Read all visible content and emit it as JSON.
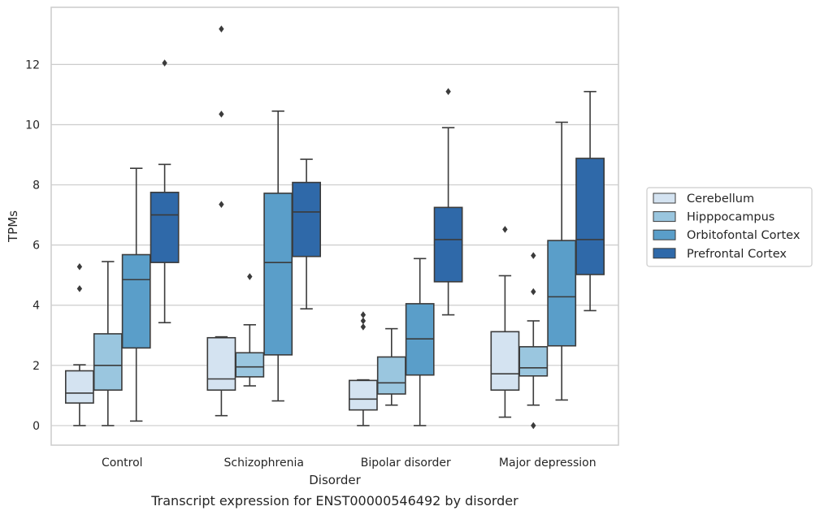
{
  "chart_data": {
    "type": "box",
    "caption": "Transcript expression for ENST00000546492 by disorder",
    "xlabel": "Disorder",
    "ylabel": "TPMs",
    "ylim": [
      -0.65,
      13.9
    ],
    "yticks": [
      0,
      2,
      4,
      6,
      8,
      10,
      12
    ],
    "grid": true,
    "legend_position": "right",
    "categories": [
      "Control",
      "Schizophrenia",
      "Bipolar disorder",
      "Major depression"
    ],
    "series": [
      {
        "name": "Cerebellum",
        "color": "#d4e3f1",
        "boxes": [
          {
            "whislo": 0.0,
            "q1": 0.75,
            "med": 1.08,
            "q3": 1.82,
            "whishi": 2.02,
            "fliers": [
              4.55,
              5.28
            ]
          },
          {
            "whislo": 0.33,
            "q1": 1.18,
            "med": 1.55,
            "q3": 2.92,
            "whishi": 2.95,
            "fliers": [
              7.35,
              10.35,
              13.18
            ]
          },
          {
            "whislo": 0.0,
            "q1": 0.52,
            "med": 0.88,
            "q3": 1.5,
            "whishi": 1.52,
            "fliers": [
              3.28,
              3.48,
              3.68
            ]
          },
          {
            "whislo": 0.28,
            "q1": 1.18,
            "med": 1.72,
            "q3": 3.12,
            "whishi": 4.98,
            "fliers": [
              6.52
            ]
          }
        ]
      },
      {
        "name": "Hipppocampus",
        "color": "#9ac6df",
        "boxes": [
          {
            "whislo": 0.0,
            "q1": 1.18,
            "med": 2.0,
            "q3": 3.05,
            "whishi": 5.45,
            "fliers": []
          },
          {
            "whislo": 1.32,
            "q1": 1.62,
            "med": 1.95,
            "q3": 2.42,
            "whishi": 3.35,
            "fliers": [
              4.95
            ]
          },
          {
            "whislo": 0.68,
            "q1": 1.05,
            "med": 1.42,
            "q3": 2.28,
            "whishi": 3.22,
            "fliers": []
          },
          {
            "whislo": 0.68,
            "q1": 1.65,
            "med": 1.92,
            "q3": 2.62,
            "whishi": 3.48,
            "fliers": [
              0.0,
              4.45,
              5.65
            ]
          }
        ]
      },
      {
        "name": "Orbitofontal Cortex",
        "color": "#5a9ec9",
        "boxes": [
          {
            "whislo": 0.15,
            "q1": 2.58,
            "med": 4.85,
            "q3": 5.68,
            "whishi": 8.55,
            "fliers": []
          },
          {
            "whislo": 0.82,
            "q1": 2.35,
            "med": 5.42,
            "q3": 7.72,
            "whishi": 10.45,
            "fliers": []
          },
          {
            "whislo": 0.0,
            "q1": 1.68,
            "med": 2.88,
            "q3": 4.05,
            "whishi": 5.55,
            "fliers": []
          },
          {
            "whislo": 0.85,
            "q1": 2.65,
            "med": 4.28,
            "q3": 6.15,
            "whishi": 10.08,
            "fliers": []
          }
        ]
      },
      {
        "name": "Prefrontal Cortex",
        "color": "#2f69a9",
        "boxes": [
          {
            "whislo": 3.42,
            "q1": 5.42,
            "med": 7.0,
            "q3": 7.75,
            "whishi": 8.68,
            "fliers": [
              12.05
            ]
          },
          {
            "whislo": 3.88,
            "q1": 5.62,
            "med": 7.1,
            "q3": 8.08,
            "whishi": 8.85,
            "fliers": []
          },
          {
            "whislo": 3.68,
            "q1": 4.78,
            "med": 6.18,
            "q3": 7.25,
            "whishi": 9.9,
            "fliers": [
              11.1
            ]
          },
          {
            "whislo": 3.82,
            "q1": 5.02,
            "med": 6.18,
            "q3": 8.88,
            "whishi": 11.1,
            "fliers": []
          }
        ]
      }
    ]
  }
}
